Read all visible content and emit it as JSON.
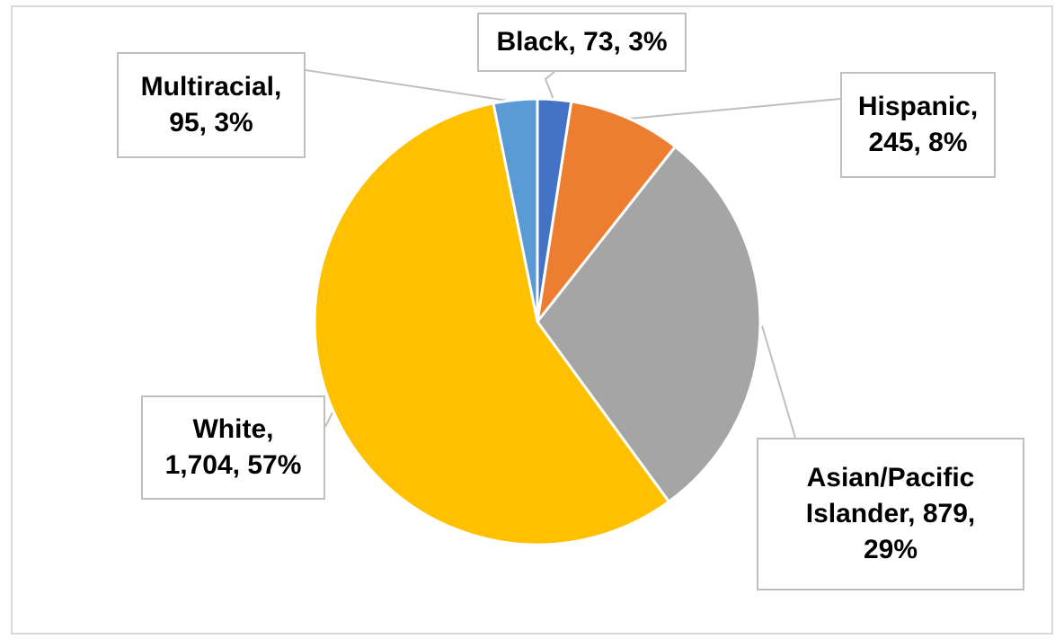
{
  "chart_data": {
    "type": "pie",
    "slices": [
      {
        "name": "Black",
        "value": 73,
        "percent": "3%",
        "label": "Black, 73, 3%",
        "color": "#4472c4"
      },
      {
        "name": "Hispanic",
        "value": 245,
        "percent": "8%",
        "label": "Hispanic,\n245, 8%",
        "color": "#ed7d31"
      },
      {
        "name": "Asian/Pacific Islander",
        "value": 879,
        "percent": "29%",
        "label": "Asian/Pacific\nIslander, 879,\n29%",
        "color": "#a5a5a5"
      },
      {
        "name": "White",
        "value": 1704,
        "percent": "57%",
        "label": "White,\n1,704, 57%",
        "color": "#ffc000"
      },
      {
        "name": "Multiracial",
        "value": 95,
        "percent": "3%",
        "label": "Multiracial,\n95, 3%",
        "color": "#5b9bd5"
      }
    ],
    "start_angle_deg": 0,
    "direction": "clockwise",
    "title": "",
    "legend": "none"
  }
}
